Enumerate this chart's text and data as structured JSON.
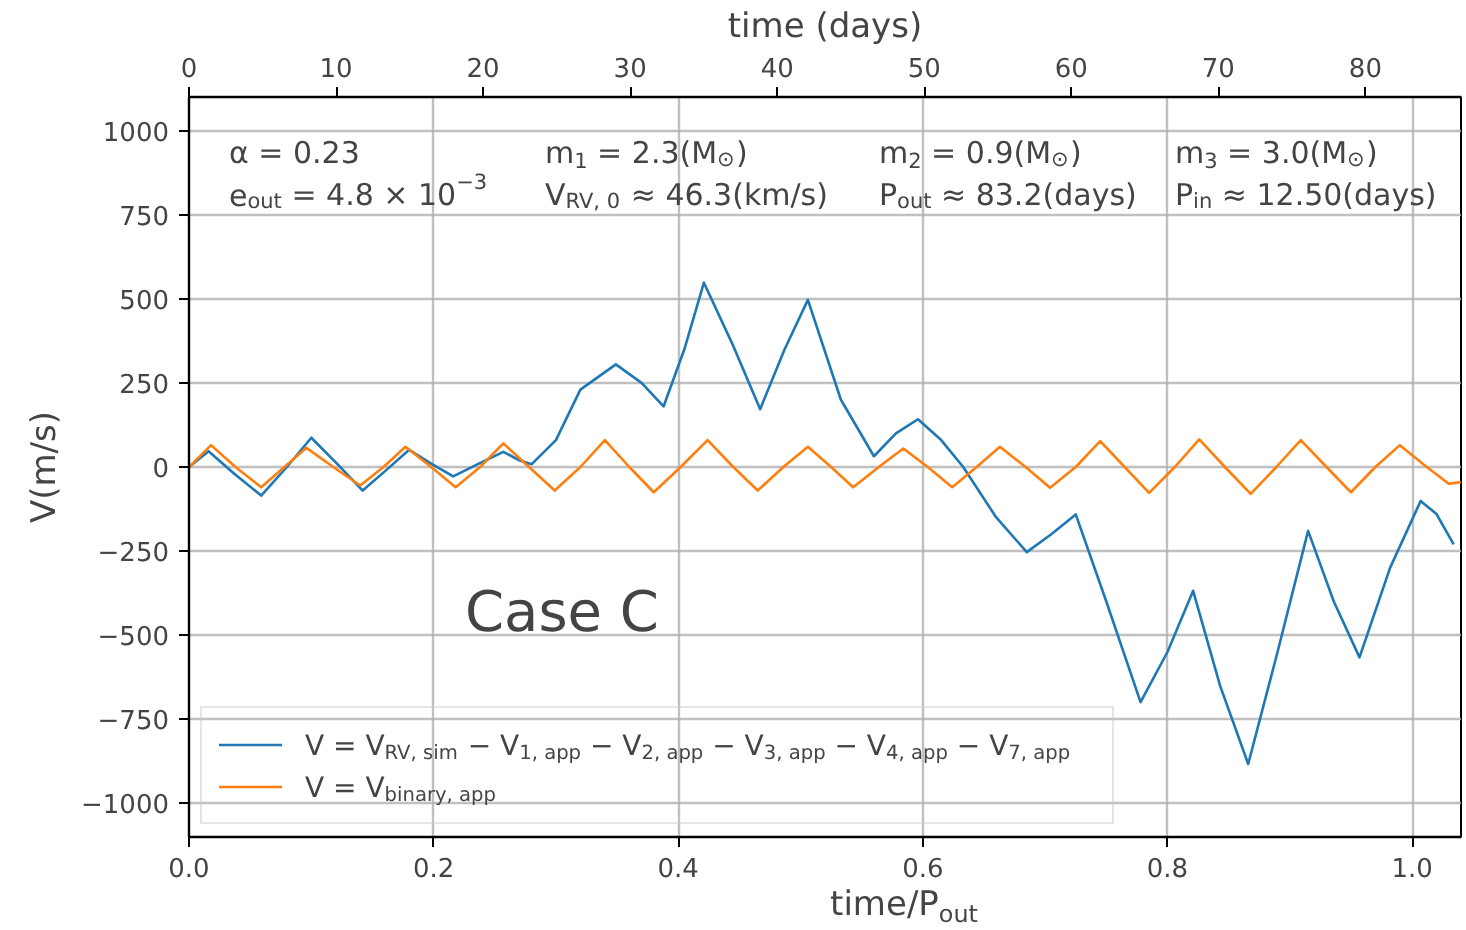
{
  "chart_data": {
    "type": "line",
    "xlabel": "time/P$_{out}$",
    "ylabel": "V(m/s)",
    "x2label": "time (days)",
    "xlim": [
      0,
      1.04
    ],
    "xticks": [
      {
        "value": 0,
        "label": "0.0"
      },
      0.2,
      0.4,
      0.6,
      0.8,
      {
        "value": 1,
        "label": "1.0"
      }
    ],
    "x2lim": [
      0,
      86.5
    ],
    "x2ticks": [
      0,
      10,
      20,
      30,
      40,
      50,
      60,
      70,
      80
    ],
    "ylim": [
      -1100,
      1100
    ],
    "yticks": [
      -1000,
      -750,
      -500,
      -250,
      0,
      250,
      500,
      750,
      1000
    ],
    "grid": true,
    "legend": "bottom left",
    "annotations": [
      "α = 0.23",
      "e$_{out}$ = 4.8 × 10$^{−3}$",
      "m$_{1}$ = 2.3(M$_{⊙}$)",
      "V$_{RV, 0}$ ≈ 46.3(km/s)",
      "m$_{2}$ = 0.9(M$_{⊙}$)",
      "P$_{out}$ ≈ 83.2(days)",
      "m$_{3}$ = 3.0(M$_{⊙}$)",
      "P$_{in}$ ≈ 12.50(days)",
      "Case C"
    ],
    "series": [
      {
        "name": "V = V$_{RV, sim}$ − V$_{1, app}$ − V$_{2, app}$ − V$_{3, app}$ − V$_{4, app}$ − V$_{7, app}$",
        "color": "#1f77b4",
        "x": [
          0,
          0.016,
          0.037,
          0.059,
          0.08,
          0.1,
          0.121,
          0.142,
          0.161,
          0.18,
          0.198,
          0.216,
          0.237,
          0.257,
          0.27,
          0.28,
          0.3,
          0.32,
          0.349,
          0.37,
          0.388,
          0.405,
          0.421,
          0.445,
          0.467,
          0.487,
          0.506,
          0.533,
          0.56,
          0.578,
          0.596,
          0.615,
          0.633,
          0.66,
          0.685,
          0.705,
          0.725,
          0.75,
          0.778,
          0.8,
          0.821,
          0.843,
          0.866,
          0.89,
          0.915,
          0.936,
          0.957,
          0.982,
          1.007,
          1.02,
          1.034
        ],
        "values": [
          0,
          47,
          -20,
          -85,
          0,
          87,
          10,
          -70,
          -10,
          51,
          10,
          -28,
          10,
          45,
          20,
          8,
          80,
          230,
          305,
          250,
          180,
          350,
          548,
          360,
          172,
          350,
          497,
          200,
          32,
          100,
          142,
          80,
          0,
          -150,
          -253,
          -200,
          -141,
          -400,
          -699,
          -550,
          -368,
          -650,
          -883,
          -550,
          -190,
          -400,
          -566,
          -300,
          -101,
          -140,
          -230
        ]
      },
      {
        "name": "V = V$_{binary, app}$",
        "color": "#ff7f0e",
        "x": [
          0,
          0.018,
          0.038,
          0.059,
          0.078,
          0.096,
          0.118,
          0.14,
          0.159,
          0.177,
          0.198,
          0.218,
          0.238,
          0.257,
          0.278,
          0.299,
          0.32,
          0.34,
          0.36,
          0.38,
          0.402,
          0.424,
          0.445,
          0.465,
          0.486,
          0.506,
          0.525,
          0.543,
          0.564,
          0.584,
          0.604,
          0.624,
          0.644,
          0.663,
          0.684,
          0.704,
          0.725,
          0.745,
          0.765,
          0.785,
          0.806,
          0.826,
          0.847,
          0.868,
          0.889,
          0.909,
          0.93,
          0.95,
          0.97,
          0.99,
          1.012,
          1.03,
          1.04
        ],
        "values": [
          0,
          65,
          0,
          -60,
          0,
          57,
          0,
          -55,
          0,
          60,
          0,
          -60,
          0,
          70,
          0,
          -70,
          0,
          80,
          0,
          -75,
          0,
          80,
          0,
          -70,
          0,
          60,
          0,
          -60,
          0,
          55,
          0,
          -60,
          0,
          60,
          0,
          -62,
          0,
          77,
          0,
          -77,
          0,
          82,
          0,
          -80,
          0,
          80,
          0,
          -75,
          0,
          65,
          0,
          -50,
          -45
        ]
      }
    ]
  }
}
